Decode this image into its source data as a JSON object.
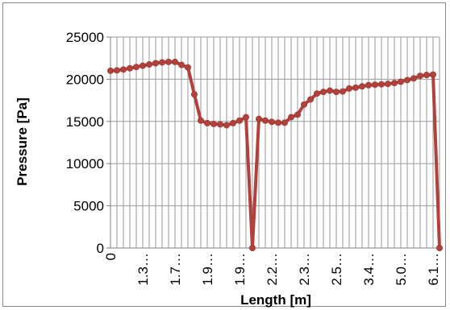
{
  "chart_data": {
    "type": "line",
    "xlabel": "Length [m]",
    "ylabel": "Pressure [Pa]",
    "ylim": [
      0,
      25000
    ],
    "y_ticks": [
      "0",
      "5000",
      "10000",
      "15000",
      "20000",
      "25000"
    ],
    "x_tick_labels": [
      "0",
      "1.3…",
      "1.7…",
      "1.9…",
      "1.9…",
      "2.2…",
      "2.3…",
      "2.5…",
      "3.4…",
      "5.0…",
      "6.1…"
    ],
    "grid": true,
    "legend": "none",
    "series": [
      {
        "color": "#b1413c",
        "values": [
          21000,
          21050,
          21150,
          21300,
          21450,
          21600,
          21750,
          21900,
          22000,
          22050,
          22050,
          21700,
          21400,
          18200,
          15100,
          14800,
          14700,
          14650,
          14550,
          14800,
          15100,
          15500,
          0,
          15300,
          15100,
          14950,
          14850,
          14850,
          15500,
          15800,
          17000,
          17600,
          18300,
          18500,
          18650,
          18500,
          18550,
          18900,
          19000,
          19150,
          19300,
          19350,
          19400,
          19450,
          19550,
          19700,
          19900,
          20100,
          20400,
          20500,
          20550,
          0
        ]
      }
    ]
  }
}
